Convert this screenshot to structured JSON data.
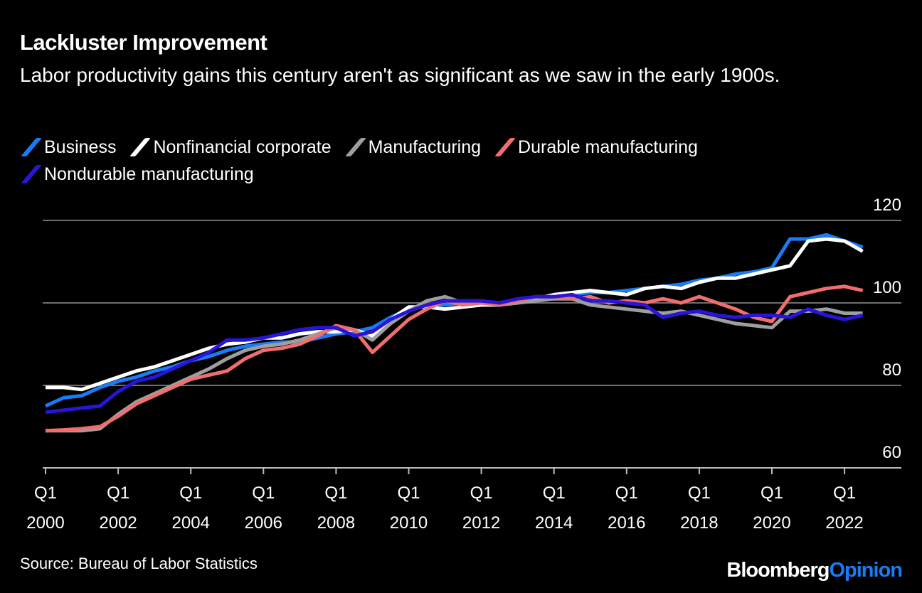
{
  "title": "Lackluster Improvement",
  "subtitle": "Labor productivity gains this century aren't as significant as we saw in the early 1900s.",
  "source": "Source: Bureau of Labor Statistics",
  "logo": {
    "brand": "Bloomberg",
    "section": "Opinion"
  },
  "chart_data": {
    "type": "line",
    "title": "Lackluster Improvement",
    "xlabel": "",
    "ylabel": "",
    "ylim": [
      60,
      120
    ],
    "yticks": [
      "60",
      "80",
      "100",
      "120"
    ],
    "xticks": [
      {
        "q": "Q1",
        "year": "2000"
      },
      {
        "q": "Q1",
        "year": "2002"
      },
      {
        "q": "Q1",
        "year": "2004"
      },
      {
        "q": "Q1",
        "year": "2006"
      },
      {
        "q": "Q1",
        "year": "2008"
      },
      {
        "q": "Q1",
        "year": "2010"
      },
      {
        "q": "Q1",
        "year": "2012"
      },
      {
        "q": "Q1",
        "year": "2014"
      },
      {
        "q": "Q1",
        "year": "2016"
      },
      {
        "q": "Q1",
        "year": "2018"
      },
      {
        "q": "Q1",
        "year": "2020"
      },
      {
        "q": "Q1",
        "year": "2022"
      }
    ],
    "grid": true,
    "legend": "top",
    "x": [
      "2000Q1",
      "2000Q3",
      "2001Q1",
      "2001Q3",
      "2002Q1",
      "2002Q3",
      "2003Q1",
      "2003Q3",
      "2004Q1",
      "2004Q3",
      "2005Q1",
      "2005Q3",
      "2006Q1",
      "2006Q3",
      "2007Q1",
      "2007Q3",
      "2008Q1",
      "2008Q3",
      "2009Q1",
      "2009Q3",
      "2010Q1",
      "2010Q3",
      "2011Q1",
      "2011Q3",
      "2012Q1",
      "2012Q3",
      "2013Q1",
      "2013Q3",
      "2014Q1",
      "2014Q3",
      "2015Q1",
      "2015Q3",
      "2016Q1",
      "2016Q3",
      "2017Q1",
      "2017Q3",
      "2018Q1",
      "2018Q3",
      "2019Q1",
      "2019Q3",
      "2020Q1",
      "2020Q3",
      "2021Q1",
      "2021Q3",
      "2022Q1",
      "2022Q3"
    ],
    "series": [
      {
        "name": "Business",
        "color": "#1a7cf5",
        "values": [
          75,
          77,
          77.5,
          79.5,
          81,
          82,
          83.5,
          84.5,
          86,
          87,
          88.5,
          89.5,
          90,
          90.5,
          90.5,
          91.5,
          92.5,
          93,
          94,
          96.5,
          98.5,
          99.5,
          99.5,
          100,
          100,
          100,
          100.5,
          101,
          101.5,
          102,
          102.5,
          102.5,
          103,
          103.5,
          104,
          104.5,
          105.5,
          106,
          107,
          107.5,
          108.5,
          115.5,
          115.5,
          116.5,
          115,
          113.5
        ]
      },
      {
        "name": "Nonfinancial corporate",
        "color": "#ffffff",
        "values": [
          79.5,
          79.5,
          79,
          80.5,
          82,
          83.5,
          84.5,
          86,
          87.5,
          89,
          90,
          90.5,
          91.5,
          91.5,
          92.5,
          93,
          93,
          93.5,
          92,
          96,
          99,
          99,
          98.5,
          99,
          99.5,
          99.5,
          100.5,
          101,
          102,
          102.5,
          103,
          102.5,
          102,
          103.5,
          104,
          103.5,
          105,
          106,
          106,
          107,
          108,
          109,
          115,
          115.5,
          115,
          112.5
        ]
      },
      {
        "name": "Manufacturing",
        "color": "#9e9e9e",
        "values": [
          69,
          69,
          69,
          69.5,
          73,
          76,
          78,
          80,
          82,
          84,
          86.5,
          88.5,
          89.5,
          90,
          91,
          92.5,
          94,
          93.5,
          91,
          95,
          98,
          100.5,
          101.5,
          100,
          100,
          99.5,
          100,
          100.5,
          101,
          101,
          99.5,
          99,
          98.5,
          98,
          97.5,
          98,
          97,
          96,
          95,
          94.5,
          94,
          98,
          98,
          98.5,
          97.5,
          97.5
        ]
      },
      {
        "name": "Durable manufacturing",
        "color": "#f26d6d",
        "values": [
          69,
          69.2,
          69.5,
          70,
          72.5,
          75.5,
          77.5,
          79.5,
          81.5,
          82.5,
          83.5,
          86.5,
          88.5,
          89,
          90,
          92,
          94.5,
          93.5,
          88,
          92,
          96,
          98.5,
          100.5,
          99.5,
          100,
          99.5,
          100.5,
          101.5,
          101.5,
          101,
          101.5,
          100,
          100.5,
          100,
          101,
          100,
          101.5,
          100,
          98.5,
          96.5,
          95.5,
          101.5,
          102.5,
          103.5,
          104,
          103
        ]
      },
      {
        "name": "Nondurable manufacturing",
        "color": "#2a14d8",
        "values": [
          73.5,
          74,
          74.5,
          75,
          78.5,
          81,
          82,
          84,
          86,
          88,
          91,
          91,
          91.5,
          92.5,
          93.5,
          94,
          94,
          92,
          93,
          96,
          98,
          99.5,
          100.5,
          100.5,
          100.5,
          100,
          101,
          101.5,
          101.5,
          102,
          100.5,
          100.5,
          100,
          99.5,
          96.5,
          97.5,
          98,
          97,
          96.5,
          97,
          97,
          96.5,
          98.5,
          97,
          96,
          97
        ]
      }
    ]
  }
}
